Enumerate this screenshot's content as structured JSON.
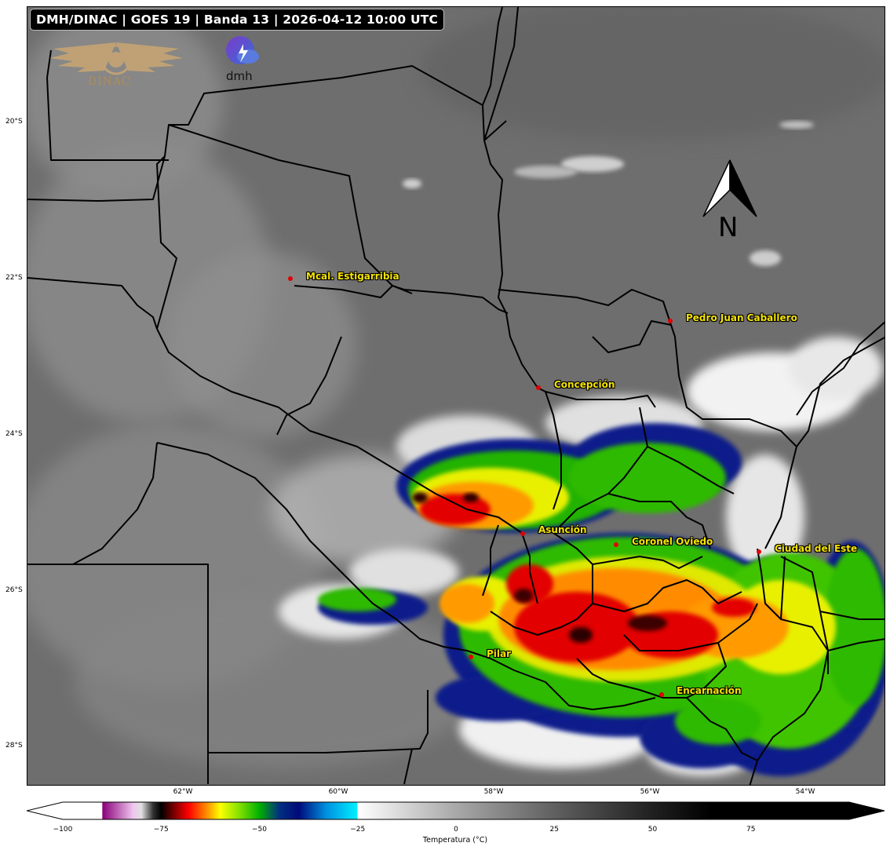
{
  "title": "DMH/DINAC | GOES 19 | Banda 13 | 2026-04-12 10:00 UTC",
  "logos": {
    "dinac_text": "DINAC",
    "dmh_text": "dmh"
  },
  "north_label": "N",
  "latitude_ticks": [
    "20°S",
    "22°S",
    "24°S",
    "26°S",
    "28°S"
  ],
  "longitude_ticks": [
    "62°W",
    "60°W",
    "58°W",
    "56°W",
    "54°W"
  ],
  "cities": [
    {
      "name": "Mcal. Estigarribia"
    },
    {
      "name": "Pedro Juan Caballero"
    },
    {
      "name": "Concepción"
    },
    {
      "name": "Asunción"
    },
    {
      "name": "Coronel Oviedo"
    },
    {
      "name": "Ciudad del Este"
    },
    {
      "name": "Pilar"
    },
    {
      "name": "Encarnación"
    }
  ],
  "colorbar": {
    "ticks": [
      "−100",
      "−75",
      "−50",
      "−25",
      "0",
      "25",
      "50",
      "75"
    ],
    "label": "Temperatura (°C)",
    "range": [
      -100,
      100
    ],
    "stops": [
      {
        "t": -100,
        "c": "#ffffff"
      },
      {
        "t": -90,
        "c": "#ffffff"
      },
      {
        "t": -89.9,
        "c": "#8a007a"
      },
      {
        "t": -82,
        "c": "#f0c8f0"
      },
      {
        "t": -80,
        "c": "#e0e0e0"
      },
      {
        "t": -77,
        "c": "#303030"
      },
      {
        "t": -75,
        "c": "#000000"
      },
      {
        "t": -72,
        "c": "#700000"
      },
      {
        "t": -68,
        "c": "#ff0000"
      },
      {
        "t": -63,
        "c": "#ff9900"
      },
      {
        "t": -60,
        "c": "#ffff00"
      },
      {
        "t": -55,
        "c": "#7fe000"
      },
      {
        "t": -50,
        "c": "#00b000"
      },
      {
        "t": -45,
        "c": "#003080"
      },
      {
        "t": -40,
        "c": "#000a7a"
      },
      {
        "t": -33,
        "c": "#0090e0"
      },
      {
        "t": -25.1,
        "c": "#00f0ff"
      },
      {
        "t": -25,
        "c": "#ffffff"
      },
      {
        "t": 0,
        "c": "#a8a8a8"
      },
      {
        "t": 25,
        "c": "#606060"
      },
      {
        "t": 50,
        "c": "#202020"
      },
      {
        "t": 65,
        "c": "#000000"
      },
      {
        "t": 100,
        "c": "#000000"
      }
    ]
  },
  "colors": {
    "city_label": "#f5e400",
    "city_dot": "#e00000",
    "background_gray": "#6f6f6f"
  }
}
